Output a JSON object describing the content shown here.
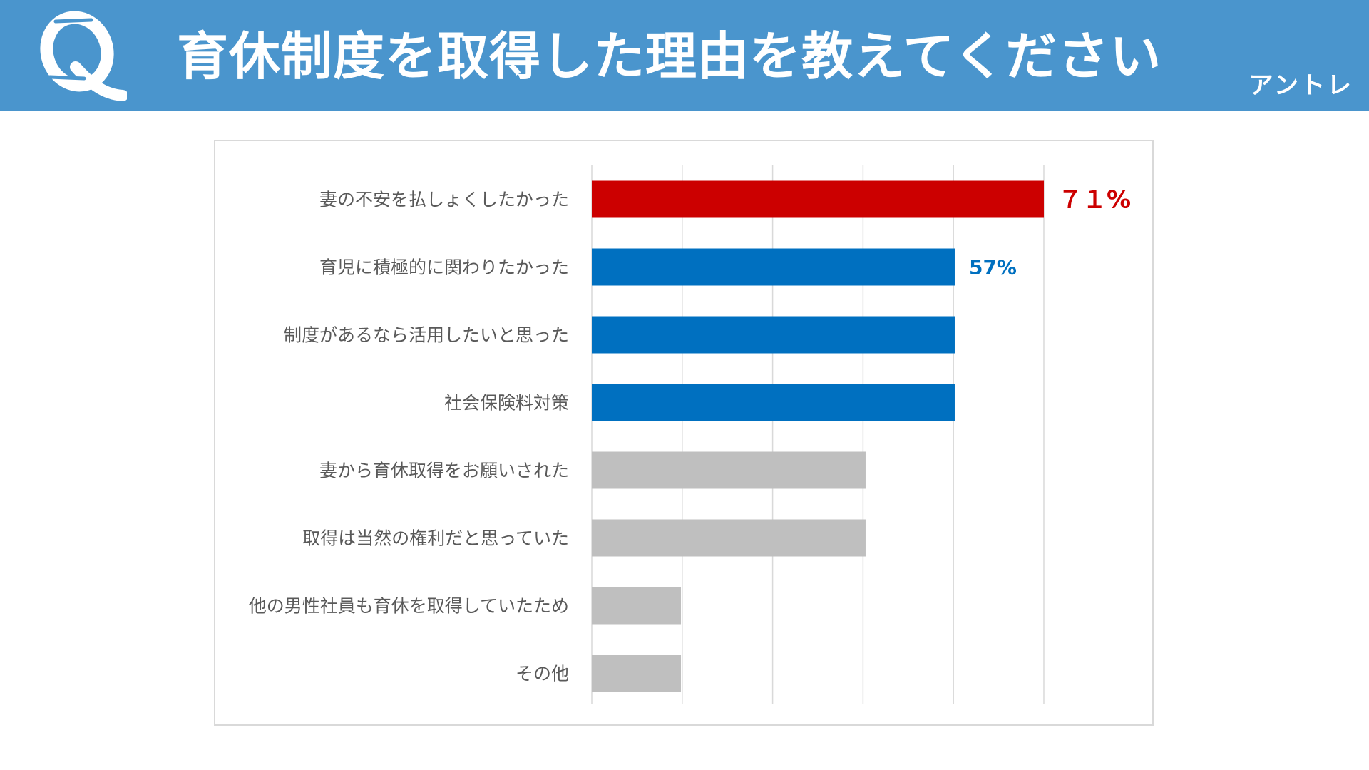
{
  "header": {
    "title": "育休制度を取得した理由を教えてください",
    "brand": "アントレ",
    "q_glyph": "Q",
    "q_icon": "question-mark-q-icon"
  },
  "colors": {
    "header_bg": "#4a95cd",
    "highlight": "#cc0000",
    "accent": "#0070c0",
    "neutral": "#bfbfbf",
    "gridline": "#d9d9d9",
    "label_text": "#595959"
  },
  "chart_data": {
    "type": "bar",
    "orientation": "horizontal",
    "title": "育休制度を取得した理由を教えてください",
    "categories": [
      "妻の不安を払しょくしたかった",
      "育児に積極的に関わりたかった",
      "制度があるなら活用したいと思った",
      "社会保険料対策",
      "妻から育休取得をお願いされた",
      "取得は当然の権利だと思っていた",
      "他の男性社員も育休を取得していたため",
      "その他"
    ],
    "values": [
      71,
      57,
      57,
      57,
      43,
      43,
      14,
      14
    ],
    "bar_colors": [
      "#cc0000",
      "#0070c0",
      "#0070c0",
      "#0070c0",
      "#bfbfbf",
      "#bfbfbf",
      "#bfbfbf",
      "#bfbfbf"
    ],
    "data_labels": [
      {
        "index": 0,
        "text": "７１%",
        "color": "#cc0000"
      },
      {
        "index": 1,
        "text": "57%",
        "color": "#0070c0"
      }
    ],
    "xlim": [
      0,
      85
    ],
    "grid_step": 14.2,
    "grid": true,
    "xlabel": "",
    "ylabel": ""
  }
}
